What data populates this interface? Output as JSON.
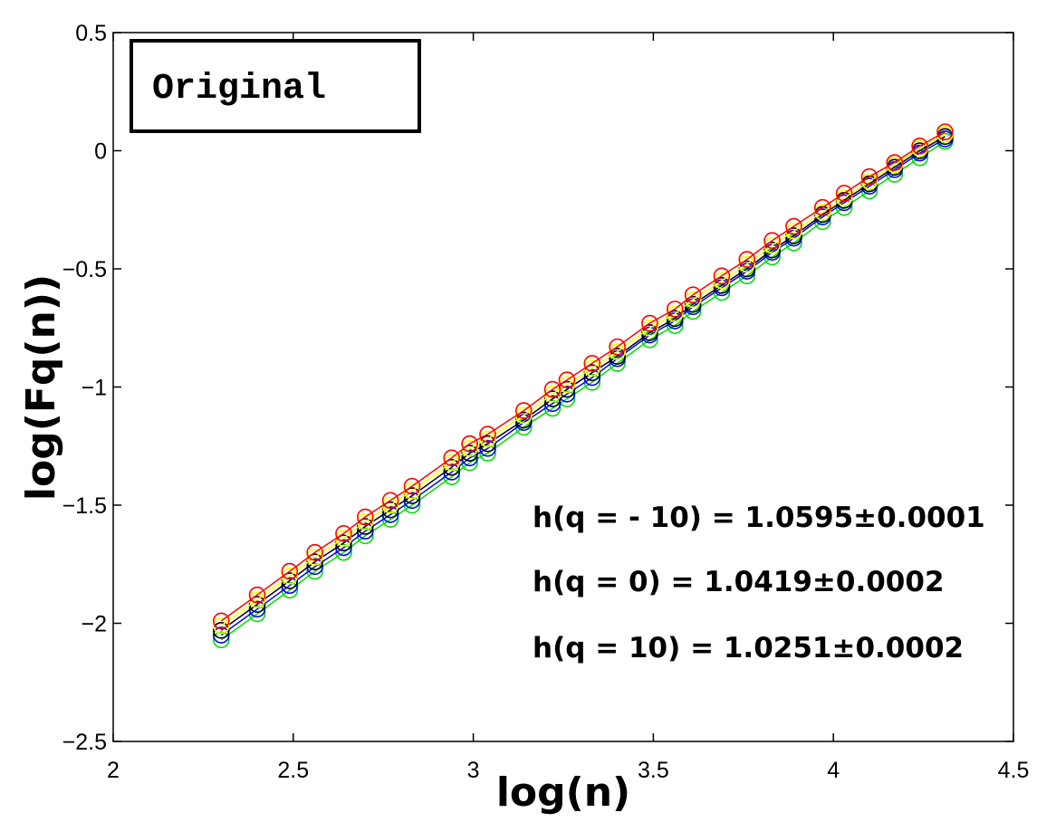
{
  "chart_data": {
    "type": "line",
    "xlabel": "log(n)",
    "ylabel": "log(Fq(n))",
    "xlim": [
      2,
      4.5
    ],
    "ylim": [
      -2.5,
      0.5
    ],
    "xticks": [
      2,
      2.5,
      3,
      3.5,
      4,
      4.5
    ],
    "yticks": [
      0.5,
      0,
      -0.5,
      -1,
      -1.5,
      -2,
      -2.5
    ],
    "xtick_labels": [
      "2",
      "2.5",
      "3",
      "3.5",
      "4",
      "4.5"
    ],
    "ytick_labels": [
      "0.5",
      "0",
      "−0.5",
      "−1",
      "−1.5",
      "−2",
      "−2.5"
    ],
    "grid": false,
    "marker": "circle",
    "inset_label": "Original",
    "annotations": [
      "h(q = - 10) = 1.0595±0.0001",
      "h(q = 0) = 1.0419±0.0002",
      "h(q = 10) = 1.0251±0.0002"
    ],
    "x": [
      2.3,
      2.4,
      2.49,
      2.56,
      2.64,
      2.7,
      2.77,
      2.83,
      2.94,
      2.99,
      3.04,
      3.14,
      3.22,
      3.26,
      3.33,
      3.4,
      3.49,
      3.56,
      3.61,
      3.69,
      3.76,
      3.83,
      3.89,
      3.97,
      4.03,
      4.1,
      4.17,
      4.24,
      4.31
    ],
    "series": [
      {
        "color": "#ff0000",
        "values": [
          -1.99,
          -1.88,
          -1.78,
          -1.7,
          -1.62,
          -1.55,
          -1.48,
          -1.42,
          -1.3,
          -1.24,
          -1.2,
          -1.1,
          -1.01,
          -0.97,
          -0.9,
          -0.83,
          -0.73,
          -0.67,
          -0.61,
          -0.53,
          -0.46,
          -0.38,
          -0.32,
          -0.24,
          -0.18,
          -0.11,
          -0.05,
          0.02,
          0.08
        ]
      },
      {
        "color": "#ffff00",
        "values": [
          -2.01,
          -1.9,
          -1.8,
          -1.72,
          -1.64,
          -1.57,
          -1.5,
          -1.44,
          -1.32,
          -1.26,
          -1.22,
          -1.12,
          -1.03,
          -0.99,
          -0.92,
          -0.85,
          -0.75,
          -0.69,
          -0.63,
          -0.55,
          -0.48,
          -0.4,
          -0.34,
          -0.26,
          -0.2,
          -0.13,
          -0.06,
          0.01,
          0.07
        ]
      },
      {
        "color": "#000000",
        "values": [
          -2.03,
          -1.92,
          -1.82,
          -1.74,
          -1.66,
          -1.59,
          -1.52,
          -1.46,
          -1.34,
          -1.28,
          -1.24,
          -1.14,
          -1.05,
          -1.01,
          -0.94,
          -0.87,
          -0.77,
          -0.71,
          -0.65,
          -0.57,
          -0.5,
          -0.42,
          -0.36,
          -0.27,
          -0.21,
          -0.14,
          -0.07,
          0.0,
          0.06
        ]
      },
      {
        "color": "#0000ff",
        "values": [
          -2.05,
          -1.94,
          -1.84,
          -1.76,
          -1.68,
          -1.61,
          -1.54,
          -1.48,
          -1.36,
          -1.3,
          -1.26,
          -1.15,
          -1.07,
          -1.03,
          -0.96,
          -0.88,
          -0.78,
          -0.72,
          -0.66,
          -0.58,
          -0.51,
          -0.43,
          -0.37,
          -0.28,
          -0.22,
          -0.15,
          -0.08,
          -0.01,
          0.05
        ]
      },
      {
        "color": "#00dd00",
        "values": [
          -2.07,
          -1.96,
          -1.86,
          -1.78,
          -1.7,
          -1.63,
          -1.56,
          -1.5,
          -1.38,
          -1.32,
          -1.28,
          -1.17,
          -1.09,
          -1.05,
          -0.98,
          -0.9,
          -0.8,
          -0.74,
          -0.68,
          -0.6,
          -0.53,
          -0.45,
          -0.39,
          -0.3,
          -0.24,
          -0.17,
          -0.1,
          -0.03,
          0.04
        ]
      }
    ]
  }
}
